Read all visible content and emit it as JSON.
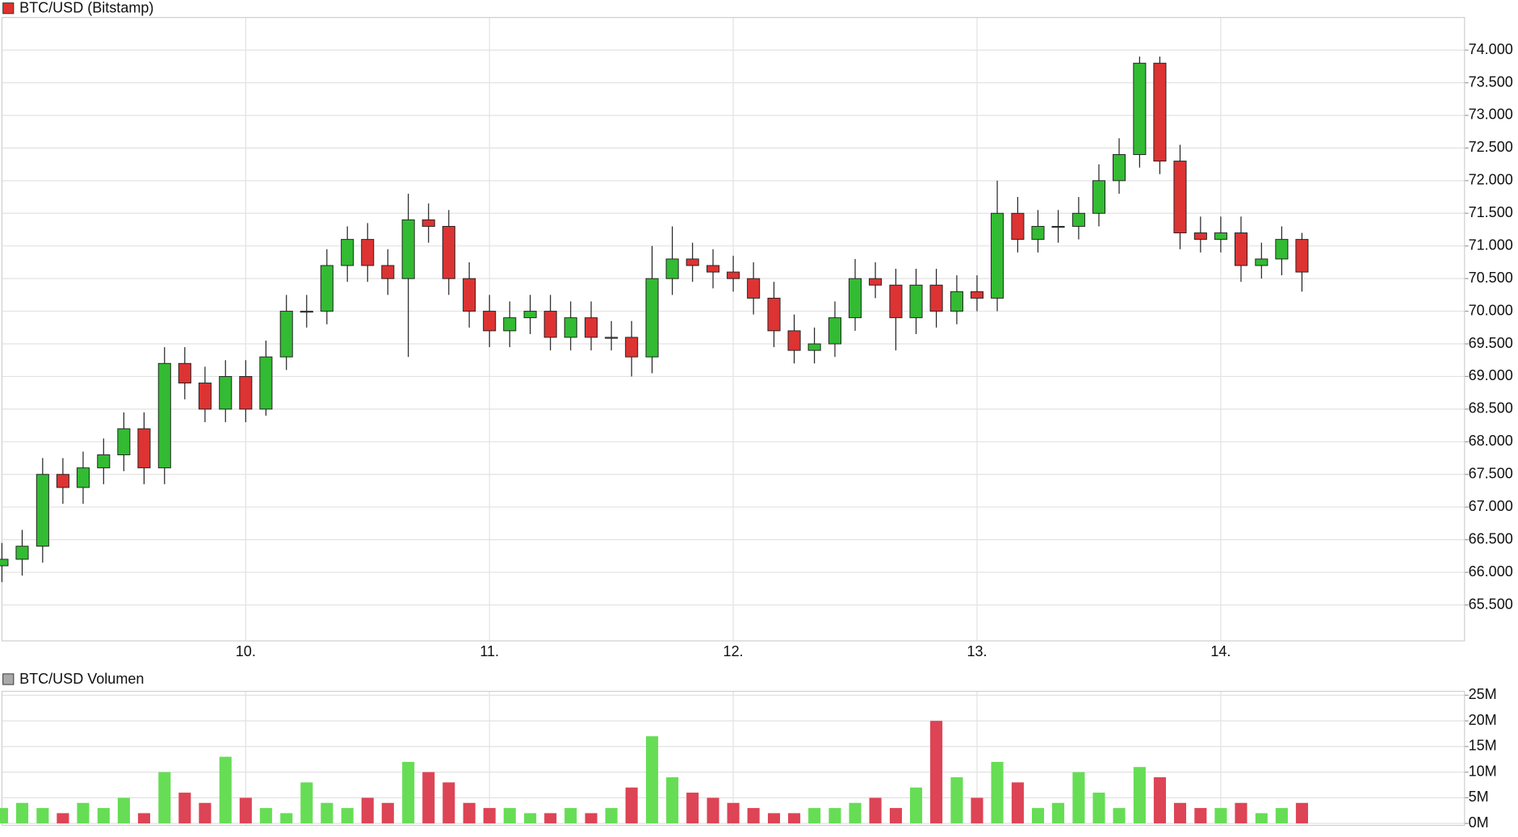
{
  "chart_data": [
    {
      "type": "candlestick",
      "title": "BTC/USD (Bitstamp)",
      "color": "#e03030",
      "up_color": "#33bb33",
      "down_color": "#dd3333",
      "x": [
        9,
        9.083,
        9.167,
        9.25,
        9.333,
        9.417,
        9.5,
        9.583,
        9.667,
        9.75,
        9.833,
        9.917,
        10,
        10.083,
        10.167,
        10.25,
        10.333,
        10.417,
        10.5,
        10.583,
        10.667,
        10.75,
        10.833,
        10.917,
        11,
        11.083,
        11.167,
        11.25,
        11.333,
        11.417,
        11.5,
        11.583,
        11.667,
        11.75,
        11.833,
        11.917,
        12,
        12.083,
        12.167,
        12.25,
        12.333,
        12.417,
        12.5,
        12.583,
        12.667,
        12.75,
        12.833,
        12.917,
        13,
        13.083,
        13.167,
        13.25,
        13.333,
        13.417,
        13.5,
        13.583,
        13.667,
        13.75,
        13.833,
        13.917,
        14,
        14.083,
        14.167,
        14.25,
        14.333
      ],
      "open": [
        66100,
        66200,
        66400,
        67500,
        67300,
        67600,
        67800,
        68200,
        67600,
        69200,
        68900,
        68500,
        69000,
        68500,
        69300,
        70000,
        70000,
        70700,
        71100,
        70700,
        70500,
        71400,
        71300,
        70500,
        70000,
        69700,
        69900,
        70000,
        69600,
        69900,
        69600,
        69600,
        69300,
        70500,
        70800,
        70700,
        70600,
        70500,
        70200,
        69700,
        69400,
        69500,
        69900,
        70500,
        70400,
        69900,
        70400,
        70000,
        70300,
        70200,
        71500,
        71100,
        71300,
        71300,
        71500,
        72000,
        72400,
        73800,
        72300,
        71200,
        71100,
        71200,
        70700,
        70800,
        71100
      ],
      "high": [
        66450,
        66650,
        67750,
        67750,
        67850,
        68050,
        68450,
        68450,
        69450,
        69450,
        69150,
        69250,
        69250,
        69550,
        70250,
        70250,
        70950,
        71300,
        71350,
        70950,
        71800,
        71650,
        71550,
        70750,
        70250,
        70150,
        70250,
        70250,
        70150,
        70150,
        69850,
        69850,
        71000,
        71300,
        71050,
        70950,
        70850,
        70750,
        70450,
        69950,
        69750,
        70150,
        70800,
        70750,
        70650,
        70650,
        70650,
        70550,
        70550,
        72000,
        71750,
        71550,
        71550,
        71750,
        72250,
        72650,
        73900,
        73900,
        72550,
        71450,
        71450,
        71450,
        71050,
        71300,
        71200
      ],
      "low": [
        65850,
        65950,
        66150,
        67050,
        67050,
        67350,
        67550,
        67350,
        67350,
        68650,
        68300,
        68300,
        68300,
        68400,
        69100,
        69750,
        69800,
        70450,
        70450,
        70250,
        69300,
        71050,
        70250,
        69750,
        69450,
        69450,
        69650,
        69400,
        69400,
        69400,
        69400,
        69000,
        69050,
        70250,
        70450,
        70350,
        70300,
        69950,
        69450,
        69200,
        69200,
        69300,
        69700,
        70200,
        69400,
        69650,
        69750,
        69800,
        70000,
        70000,
        70900,
        70900,
        71050,
        71100,
        71300,
        71800,
        72200,
        72100,
        70950,
        70900,
        70900,
        70450,
        70500,
        70550,
        70300
      ],
      "close": [
        66200,
        66400,
        67500,
        67300,
        67600,
        67800,
        68200,
        67600,
        69200,
        68900,
        68500,
        69000,
        68500,
        69300,
        70000,
        70000,
        70700,
        71100,
        70700,
        70500,
        71400,
        71300,
        70500,
        70000,
        69700,
        69900,
        70000,
        69600,
        69900,
        69600,
        69600,
        69300,
        70500,
        70800,
        70700,
        70600,
        70500,
        70200,
        69700,
        69400,
        69500,
        69900,
        70500,
        70400,
        69900,
        70400,
        70000,
        70300,
        70200,
        71500,
        71100,
        71300,
        71300,
        71500,
        72000,
        72400,
        73800,
        72300,
        71200,
        71100,
        71200,
        70700,
        70800,
        71100,
        70600
      ],
      "xlim": [
        9,
        15
      ],
      "xticks": [
        {
          "value": 10,
          "label": "10."
        },
        {
          "value": 11,
          "label": "11."
        },
        {
          "value": 12,
          "label": "12."
        },
        {
          "value": 13,
          "label": "13."
        },
        {
          "value": 14,
          "label": "14."
        }
      ],
      "ylim": [
        64950,
        74500
      ],
      "yticks": [
        {
          "value": 65500,
          "label": "65.500"
        },
        {
          "value": 66000,
          "label": "66.000"
        },
        {
          "value": 66500,
          "label": "66.500"
        },
        {
          "value": 67000,
          "label": "67.000"
        },
        {
          "value": 67500,
          "label": "67.500"
        },
        {
          "value": 68000,
          "label": "68.000"
        },
        {
          "value": 68500,
          "label": "68.500"
        },
        {
          "value": 69000,
          "label": "69.000"
        },
        {
          "value": 69500,
          "label": "69.500"
        },
        {
          "value": 70000,
          "label": "70.000"
        },
        {
          "value": 70500,
          "label": "70.500"
        },
        {
          "value": 71000,
          "label": "71.000"
        },
        {
          "value": 71500,
          "label": "71.500"
        },
        {
          "value": 72000,
          "label": "72.000"
        },
        {
          "value": 72500,
          "label": "72.500"
        },
        {
          "value": 73000,
          "label": "73.000"
        },
        {
          "value": 73500,
          "label": "73.500"
        },
        {
          "value": 74000,
          "label": "74.000"
        }
      ],
      "grid": true
    },
    {
      "type": "bar",
      "title": "BTC/USD Volumen",
      "color": "#aaaaaa",
      "up_color": "#66dd55",
      "down_color": "#dd4455",
      "x": [
        9,
        9.083,
        9.167,
        9.25,
        9.333,
        9.417,
        9.5,
        9.583,
        9.667,
        9.75,
        9.833,
        9.917,
        10,
        10.083,
        10.167,
        10.25,
        10.333,
        10.417,
        10.5,
        10.583,
        10.667,
        10.75,
        10.833,
        10.917,
        11,
        11.083,
        11.167,
        11.25,
        11.333,
        11.417,
        11.5,
        11.583,
        11.667,
        11.75,
        11.833,
        11.917,
        12,
        12.083,
        12.167,
        12.25,
        12.333,
        12.417,
        12.5,
        12.583,
        12.667,
        12.75,
        12.833,
        12.917,
        13,
        13.083,
        13.167,
        13.25,
        13.333,
        13.417,
        13.5,
        13.583,
        13.667,
        13.75,
        13.833,
        13.917,
        14,
        14.083,
        14.167,
        14.25,
        14.333
      ],
      "values": [
        3000000,
        4000000,
        3000000,
        2000000,
        4000000,
        3000000,
        5000000,
        2000000,
        10000000,
        6000000,
        4000000,
        13000000,
        5000000,
        3000000,
        2000000,
        8000000,
        4000000,
        3000000,
        5000000,
        4000000,
        12000000,
        10000000,
        8000000,
        4000000,
        3000000,
        3000000,
        2000000,
        2000000,
        3000000,
        2000000,
        3000000,
        7000000,
        17000000,
        9000000,
        6000000,
        5000000,
        4000000,
        3000000,
        2000000,
        2000000,
        3000000,
        3000000,
        4000000,
        5000000,
        3000000,
        7000000,
        20000000,
        9000000,
        5000000,
        12000000,
        8000000,
        3000000,
        4000000,
        10000000,
        6000000,
        3000000,
        11000000,
        9000000,
        4000000,
        3000000,
        3000000,
        4000000,
        2000000,
        3000000,
        4000000
      ],
      "xlim": [
        9,
        15
      ],
      "ylim": [
        0,
        25000000
      ],
      "yticks": [
        {
          "value": 0,
          "label": "0M"
        },
        {
          "value": 5000000,
          "label": "5M"
        },
        {
          "value": 10000000,
          "label": "10M"
        },
        {
          "value": 15000000,
          "label": "15M"
        },
        {
          "value": 20000000,
          "label": "20M"
        },
        {
          "value": 25000000,
          "label": "25M"
        }
      ],
      "grid": true
    }
  ]
}
